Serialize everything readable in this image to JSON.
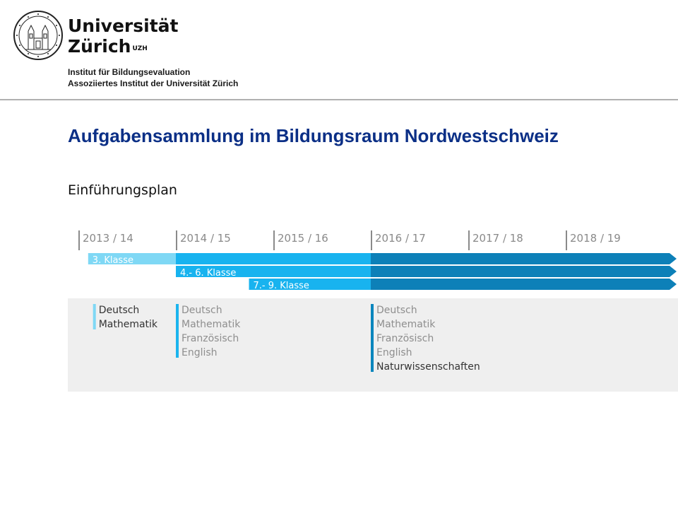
{
  "header": {
    "university_line1": "Universität",
    "university_line2": "Zürich",
    "university_abbr": "UZH",
    "institute_line1": "Institut für Bildungsevaluation",
    "institute_line2": "Assoziiertes Institut der Universität Zürich"
  },
  "slide": {
    "title": "Aufgabensammlung im Bildungsraum Nordwestschweiz",
    "subtitle": "Einführungsplan"
  },
  "timeline": {
    "years": [
      "2013 / 14",
      "2014 / 15",
      "2015 / 16",
      "2016 / 17",
      "2017 / 18",
      "2018 / 19"
    ],
    "bars": [
      {
        "label": "3. Klasse",
        "start_year_index": 0.1
      },
      {
        "label": "4.- 6. Klasse",
        "start_year_index": 1.0
      },
      {
        "label": "7.- 9. Klasse",
        "start_year_index": 1.75
      }
    ],
    "subject_groups": [
      {
        "year_index": 0.15,
        "subjects": [
          "Deutsch",
          "Mathematik"
        ],
        "marker_color": "#7fd8f5",
        "text_color": "#333333"
      },
      {
        "year_index": 1.0,
        "subjects": [
          "Deutsch",
          "Mathematik",
          "Französisch",
          "English"
        ],
        "marker_color": "#1bb4ee",
        "text_color": "#8e8e8e"
      },
      {
        "year_index": 3.0,
        "subjects": [
          "Deutsch",
          "Mathematik",
          "Französisch",
          "English",
          "Naturwissenschaften"
        ],
        "marker_color": "#0a86bd",
        "text_color": "#8e8e8e",
        "last_text_color": "#333333"
      }
    ],
    "colors": {
      "phase1": "#7fd8f5",
      "phase2": "#18b3ef",
      "phase3": "#0d80b8",
      "band_bg": "#efefef",
      "year_tick": "#8a8a8a"
    }
  }
}
